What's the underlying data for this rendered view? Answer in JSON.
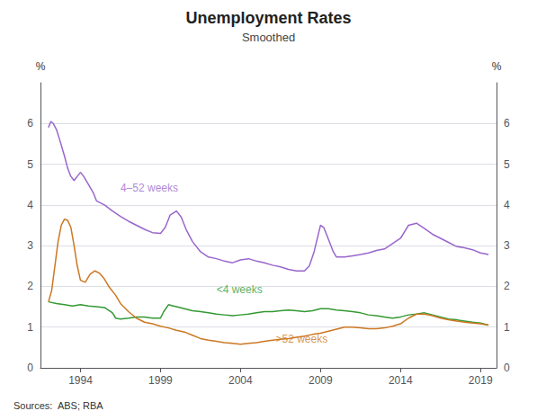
{
  "chart_data": {
    "type": "line",
    "title": "Unemployment Rates",
    "subtitle": "Smoothed",
    "ylabel": "%",
    "y2label": "%",
    "source": "Sources:  ABS; RBA",
    "xlim": [
      1991.5,
      2020.0
    ],
    "xticks": [
      1994,
      1999,
      2004,
      2009,
      2014,
      2019
    ],
    "ylim": [
      0,
      7
    ],
    "yticks": [
      0,
      1,
      2,
      3,
      4,
      5,
      6
    ],
    "y2lim": [
      0,
      7
    ],
    "y2ticks": [
      0,
      1,
      2,
      3,
      4,
      5,
      6
    ],
    "grid": true,
    "series": [
      {
        "color": "#9966cc",
        "x": [
          1992.0,
          1992.15,
          1992.3,
          1992.5,
          1992.7,
          1993.0,
          1993.2,
          1993.4,
          1993.6,
          1993.8,
          1994.0,
          1994.2,
          1994.5,
          1994.8,
          1995.0,
          1995.5,
          1996.0,
          1996.5,
          1997.0,
          1997.5,
          1998.0,
          1998.5,
          1999.0,
          1999.3,
          1999.6,
          2000.0,
          2000.3,
          2000.6,
          2001.0,
          2001.5,
          2002.0,
          2002.5,
          2003.0,
          2003.5,
          2004.0,
          2004.5,
          2005.0,
          2005.5,
          2006.0,
          2006.5,
          2007.0,
          2007.5,
          2008.0,
          2008.3,
          2008.6,
          2009.0,
          2009.2,
          2009.5,
          2009.8,
          2010.0,
          2010.5,
          2011.0,
          2011.5,
          2012.0,
          2012.5,
          2013.0,
          2013.5,
          2014.0,
          2014.5,
          2015.0,
          2015.5,
          2016.0,
          2016.5,
          2017.0,
          2017.5,
          2018.0,
          2018.5,
          2019.0,
          2019.5
        ],
        "values": [
          5.9,
          6.05,
          6.0,
          5.85,
          5.6,
          5.2,
          4.9,
          4.7,
          4.6,
          4.7,
          4.8,
          4.7,
          4.5,
          4.3,
          4.1,
          4.0,
          3.85,
          3.72,
          3.6,
          3.5,
          3.4,
          3.32,
          3.3,
          3.45,
          3.75,
          3.85,
          3.7,
          3.4,
          3.1,
          2.85,
          2.72,
          2.68,
          2.62,
          2.58,
          2.65,
          2.68,
          2.62,
          2.58,
          2.52,
          2.48,
          2.42,
          2.38,
          2.38,
          2.5,
          2.85,
          3.5,
          3.45,
          3.15,
          2.85,
          2.72,
          2.72,
          2.75,
          2.78,
          2.82,
          2.88,
          2.92,
          3.05,
          3.18,
          3.5,
          3.55,
          3.42,
          3.28,
          3.18,
          3.08,
          2.98,
          2.95,
          2.9,
          2.82,
          2.78
        ]
      },
      {
        "color": "#339933",
        "x": [
          1992.0,
          1992.5,
          1993.0,
          1993.5,
          1994.0,
          1994.5,
          1995.0,
          1995.5,
          1996.0,
          1996.2,
          1996.5,
          1997.0,
          1997.5,
          1998.0,
          1998.5,
          1999.0,
          1999.2,
          1999.5,
          1999.8,
          2000.0,
          2000.5,
          2001.0,
          2001.5,
          2002.0,
          2002.5,
          2003.0,
          2003.5,
          2004.0,
          2004.5,
          2005.0,
          2005.5,
          2006.0,
          2006.5,
          2007.0,
          2007.5,
          2008.0,
          2008.5,
          2009.0,
          2009.5,
          2010.0,
          2010.5,
          2011.0,
          2011.5,
          2012.0,
          2012.5,
          2013.0,
          2013.5,
          2014.0,
          2014.5,
          2015.0,
          2015.5,
          2016.0,
          2016.5,
          2017.0,
          2017.5,
          2018.0,
          2018.5,
          2019.0,
          2019.5
        ],
        "values": [
          1.62,
          1.58,
          1.55,
          1.52,
          1.55,
          1.52,
          1.5,
          1.48,
          1.35,
          1.22,
          1.2,
          1.22,
          1.25,
          1.25,
          1.22,
          1.22,
          1.38,
          1.55,
          1.52,
          1.5,
          1.45,
          1.4,
          1.38,
          1.35,
          1.32,
          1.3,
          1.28,
          1.3,
          1.32,
          1.35,
          1.38,
          1.38,
          1.4,
          1.42,
          1.4,
          1.38,
          1.4,
          1.45,
          1.45,
          1.42,
          1.4,
          1.38,
          1.35,
          1.3,
          1.28,
          1.25,
          1.22,
          1.25,
          1.3,
          1.32,
          1.35,
          1.3,
          1.25,
          1.2,
          1.18,
          1.15,
          1.12,
          1.1,
          1.05
        ]
      },
      {
        "color": "#cc7722",
        "x": [
          1992.0,
          1992.2,
          1992.4,
          1992.6,
          1992.8,
          1993.0,
          1993.2,
          1993.4,
          1993.6,
          1993.8,
          1994.0,
          1994.3,
          1994.6,
          1994.9,
          1995.2,
          1995.5,
          1995.8,
          1996.2,
          1996.5,
          1997.0,
          1997.5,
          1998.0,
          1998.5,
          1999.0,
          1999.5,
          2000.0,
          2000.5,
          2001.0,
          2001.5,
          2002.0,
          2002.5,
          2003.0,
          2003.5,
          2004.0,
          2004.5,
          2005.0,
          2005.5,
          2006.0,
          2006.5,
          2007.0,
          2007.5,
          2008.0,
          2008.5,
          2009.0,
          2009.5,
          2010.0,
          2010.5,
          2011.0,
          2011.5,
          2012.0,
          2012.5,
          2013.0,
          2013.5,
          2014.0,
          2014.5,
          2015.0,
          2015.5,
          2016.0,
          2016.5,
          2017.0,
          2017.5,
          2018.0,
          2018.5,
          2019.0,
          2019.5
        ],
        "values": [
          1.62,
          1.9,
          2.5,
          3.1,
          3.5,
          3.65,
          3.62,
          3.45,
          3.0,
          2.5,
          2.15,
          2.1,
          2.3,
          2.38,
          2.32,
          2.18,
          1.98,
          1.78,
          1.58,
          1.38,
          1.22,
          1.12,
          1.08,
          1.02,
          0.98,
          0.92,
          0.88,
          0.8,
          0.72,
          0.68,
          0.65,
          0.62,
          0.6,
          0.58,
          0.6,
          0.62,
          0.65,
          0.68,
          0.7,
          0.72,
          0.75,
          0.78,
          0.82,
          0.85,
          0.9,
          0.95,
          1.0,
          1.0,
          0.98,
          0.96,
          0.96,
          0.98,
          1.02,
          1.08,
          1.22,
          1.32,
          1.32,
          1.28,
          1.22,
          1.18,
          1.15,
          1.12,
          1.1,
          1.08,
          1.05
        ]
      }
    ],
    "annotations": [
      {
        "text": "4–52 weeks",
        "x": 1996.5,
        "y": 4.25,
        "color": "#9966cc"
      },
      {
        "text": "<4 weeks",
        "x": 2002.5,
        "y": 1.75,
        "color": "#339933"
      },
      {
        "text": ">52 weeks",
        "x": 2006.2,
        "y": 0.52,
        "color": "#cc7722"
      }
    ]
  }
}
